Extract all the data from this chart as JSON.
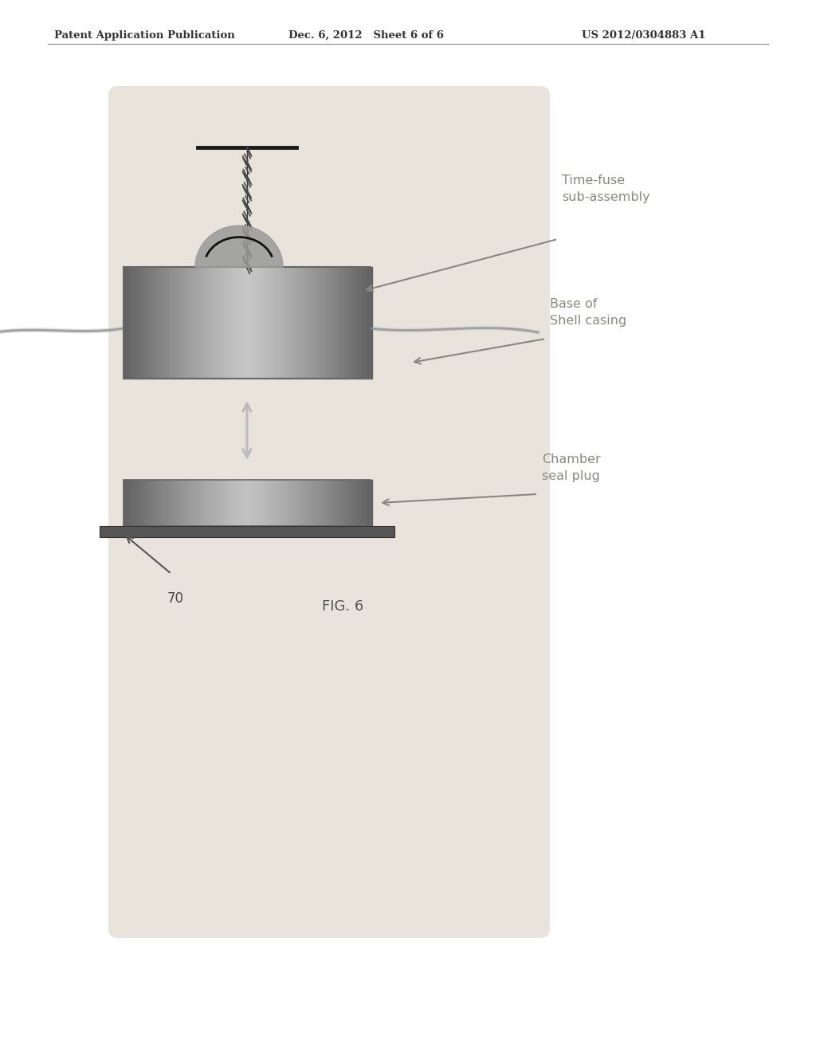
{
  "page_bg": "#ffffff",
  "diagram_bg": "#e8e4dc",
  "header_left": "Patent Application Publication",
  "header_center": "Dec. 6, 2012   Sheet 6 of 6",
  "header_right": "US 2012/0304883 A1",
  "label_time_fuse": "Time-fuse\nsub-assembly",
  "label_base": "Base of\nShell casing",
  "label_chamber": "Chamber\nseal plug",
  "label_70": "70",
  "label_fig": "FIG. 6",
  "text_color": "#888880",
  "header_color": "#333333",
  "header_fontsize": 9.5,
  "label_fontsize": 11.5
}
